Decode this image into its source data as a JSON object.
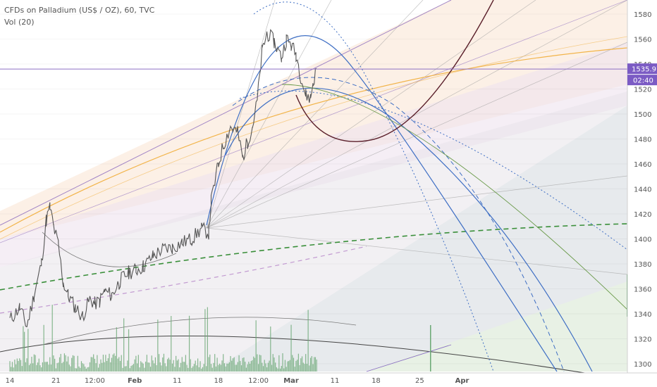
{
  "legend": {
    "symbol_line": "CFDs on Palladium (US$ / OZ), 60, TVC",
    "volume_line": "Vol (20)"
  },
  "price_badge": {
    "price": "1535.97",
    "countdown": "02:40"
  },
  "colors": {
    "candle": "#555555",
    "volume": "#6aa874",
    "arc_blue": "#3f6fc4",
    "arc_dark": "#5a1f2a",
    "orange_line": "#f2b44a",
    "purple_line": "#9d7fc4",
    "green_dashed": "#3a8f3a",
    "price_line": "#8c6fc4",
    "badge_bg": "#7b5bc4"
  },
  "chart_data": {
    "type": "line",
    "symbol": "CFDs on Palladium (US$ / OZ)",
    "interval": "60",
    "source": "TVC",
    "ylim": [
      1290,
      1590
    ],
    "y_ticks": [
      1300,
      1320,
      1340,
      1360,
      1380,
      1400,
      1420,
      1440,
      1460,
      1480,
      1500,
      1520,
      1540,
      1560,
      1580
    ],
    "x_ticks": [
      "14",
      "21",
      "12:00",
      "Feb",
      "11",
      "18",
      "12:00",
      "Mar",
      "11",
      "18",
      "25",
      "Apr"
    ],
    "x_tick_index": [
      0,
      38,
      70,
      103,
      138,
      172,
      205,
      232,
      268,
      302,
      338,
      373
    ],
    "last_price": 1535.97,
    "price_path": [
      [
        0,
        1335
      ],
      [
        8,
        1345
      ],
      [
        14,
        1330
      ],
      [
        20,
        1355
      ],
      [
        26,
        1380
      ],
      [
        30,
        1415
      ],
      [
        33,
        1425
      ],
      [
        36,
        1410
      ],
      [
        40,
        1395
      ],
      [
        44,
        1365
      ],
      [
        48,
        1355
      ],
      [
        54,
        1345
      ],
      [
        60,
        1338
      ],
      [
        66,
        1352
      ],
      [
        70,
        1348
      ],
      [
        74,
        1350
      ],
      [
        78,
        1358
      ],
      [
        84,
        1355
      ],
      [
        90,
        1365
      ],
      [
        94,
        1370
      ],
      [
        98,
        1373
      ],
      [
        104,
        1375
      ],
      [
        110,
        1378
      ],
      [
        118,
        1386
      ],
      [
        126,
        1392
      ],
      [
        134,
        1393
      ],
      [
        142,
        1397
      ],
      [
        150,
        1400
      ],
      [
        158,
        1408
      ],
      [
        164,
        1405
      ],
      [
        166,
        1430
      ],
      [
        172,
        1460
      ],
      [
        176,
        1475
      ],
      [
        182,
        1490
      ],
      [
        188,
        1485
      ],
      [
        192,
        1465
      ],
      [
        196,
        1478
      ],
      [
        200,
        1490
      ],
      [
        204,
        1510
      ],
      [
        208,
        1550
      ],
      [
        212,
        1565
      ],
      [
        218,
        1558
      ],
      [
        224,
        1545
      ],
      [
        228,
        1560
      ],
      [
        232,
        1555
      ],
      [
        236,
        1548
      ],
      [
        240,
        1530
      ],
      [
        244,
        1515
      ],
      [
        248,
        1513
      ],
      [
        250,
        1525
      ],
      [
        253,
        1535.97
      ]
    ],
    "volume_max": 30
  }
}
